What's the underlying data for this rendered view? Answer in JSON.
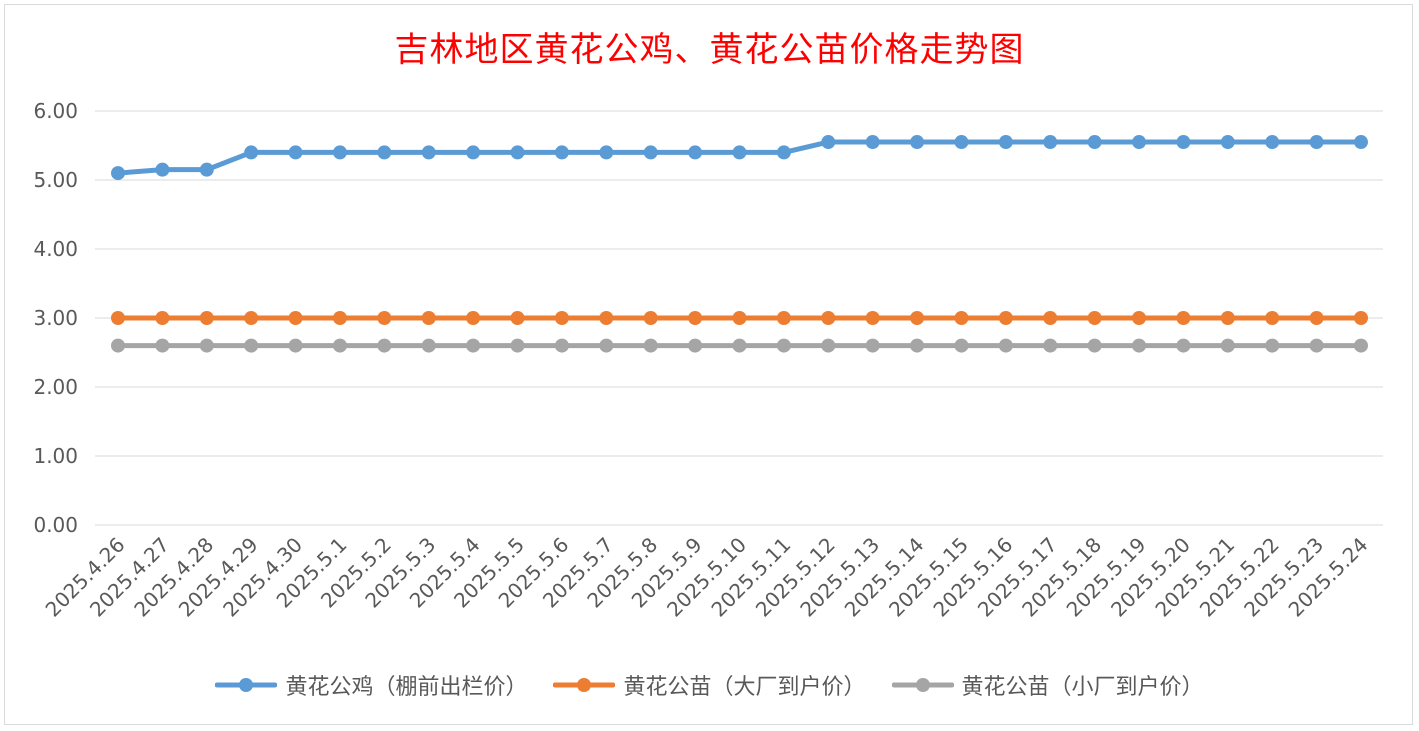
{
  "chart_data": {
    "type": "line",
    "title": "吉林地区黄花公鸡、黄花公苗价格走势图",
    "xlabel": "",
    "ylabel": "",
    "ylim": [
      0,
      6
    ],
    "y_ticks": [
      "0.00",
      "1.00",
      "2.00",
      "3.00",
      "4.00",
      "5.00",
      "6.00"
    ],
    "grid": true,
    "legend_position": "bottom",
    "categories": [
      "2025.4.26",
      "2025.4.27",
      "2025.4.28",
      "2025.4.29",
      "2025.4.30",
      "2025.5.1",
      "2025.5.2",
      "2025.5.3",
      "2025.5.4",
      "2025.5.5",
      "2025.5.6",
      "2025.5.7",
      "2025.5.8",
      "2025.5.9",
      "2025.5.10",
      "2025.5.11",
      "2025.5.12",
      "2025.5.13",
      "2025.5.14",
      "2025.5.15",
      "2025.5.16",
      "2025.5.17",
      "2025.5.18",
      "2025.5.19",
      "2025.5.20",
      "2025.5.21",
      "2025.5.22",
      "2025.5.23",
      "2025.5.24"
    ],
    "series": [
      {
        "name": "黄花公鸡（棚前出栏价）",
        "color": "#5b9bd5",
        "values": [
          5.1,
          5.15,
          5.15,
          5.4,
          5.4,
          5.4,
          5.4,
          5.4,
          5.4,
          5.4,
          5.4,
          5.4,
          5.4,
          5.4,
          5.4,
          5.4,
          5.55,
          5.55,
          5.55,
          5.55,
          5.55,
          5.55,
          5.55,
          5.55,
          5.55,
          5.55,
          5.55,
          5.55,
          5.55
        ]
      },
      {
        "name": "黄花公苗（大厂到户价）",
        "color": "#ed7d31",
        "values": [
          3.0,
          3.0,
          3.0,
          3.0,
          3.0,
          3.0,
          3.0,
          3.0,
          3.0,
          3.0,
          3.0,
          3.0,
          3.0,
          3.0,
          3.0,
          3.0,
          3.0,
          3.0,
          3.0,
          3.0,
          3.0,
          3.0,
          3.0,
          3.0,
          3.0,
          3.0,
          3.0,
          3.0,
          3.0
        ]
      },
      {
        "name": "黄花公苗（小厂到户价）",
        "color": "#a5a5a5",
        "values": [
          2.6,
          2.6,
          2.6,
          2.6,
          2.6,
          2.6,
          2.6,
          2.6,
          2.6,
          2.6,
          2.6,
          2.6,
          2.6,
          2.6,
          2.6,
          2.6,
          2.6,
          2.6,
          2.6,
          2.6,
          2.6,
          2.6,
          2.6,
          2.6,
          2.6,
          2.6,
          2.6,
          2.6,
          2.6
        ]
      }
    ],
    "gridline_color": "#d9d9d9",
    "axis_text_color": "#595959",
    "title_color": "#ff0000"
  }
}
